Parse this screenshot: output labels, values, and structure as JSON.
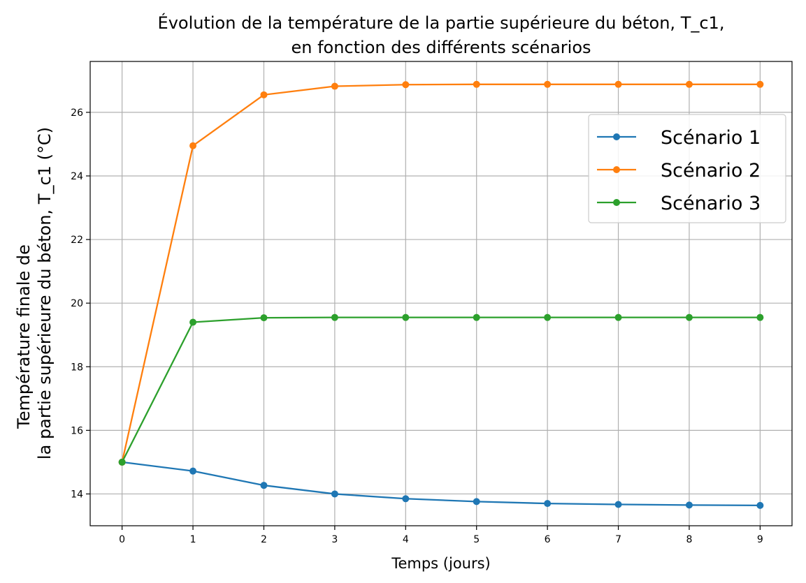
{
  "chart_data": {
    "type": "line",
    "title_lines": [
      "Évolution de la température de la partie supérieure du béton, T_c1,",
      "en fonction des différents scénarios"
    ],
    "xlabel": "Temps (jours)",
    "ylabel_lines": [
      "Température finale de",
      "la partie supérieure du béton, T_c1 (°C)"
    ],
    "x": [
      0,
      1,
      2,
      3,
      4,
      5,
      6,
      7,
      8,
      9
    ],
    "xlim": [
      -0.45,
      9.45
    ],
    "ylim": [
      13.0,
      27.6
    ],
    "xticks": [
      0,
      1,
      2,
      3,
      4,
      5,
      6,
      7,
      8,
      9
    ],
    "yticks": [
      14,
      16,
      18,
      20,
      22,
      24,
      26
    ],
    "grid": true,
    "legend_position": "upper-right",
    "series": [
      {
        "name": "Scénario 1",
        "color": "#1f77b4",
        "values": [
          15.0,
          14.72,
          14.27,
          14.0,
          13.85,
          13.76,
          13.7,
          13.67,
          13.65,
          13.64
        ]
      },
      {
        "name": "Scénario 2",
        "color": "#ff7f0e",
        "values": [
          15.0,
          24.95,
          26.55,
          26.82,
          26.87,
          26.88,
          26.88,
          26.88,
          26.88,
          26.88
        ]
      },
      {
        "name": "Scénario 3",
        "color": "#2ca02c",
        "values": [
          15.0,
          19.4,
          19.54,
          19.55,
          19.55,
          19.55,
          19.55,
          19.55,
          19.55,
          19.55
        ]
      }
    ]
  }
}
